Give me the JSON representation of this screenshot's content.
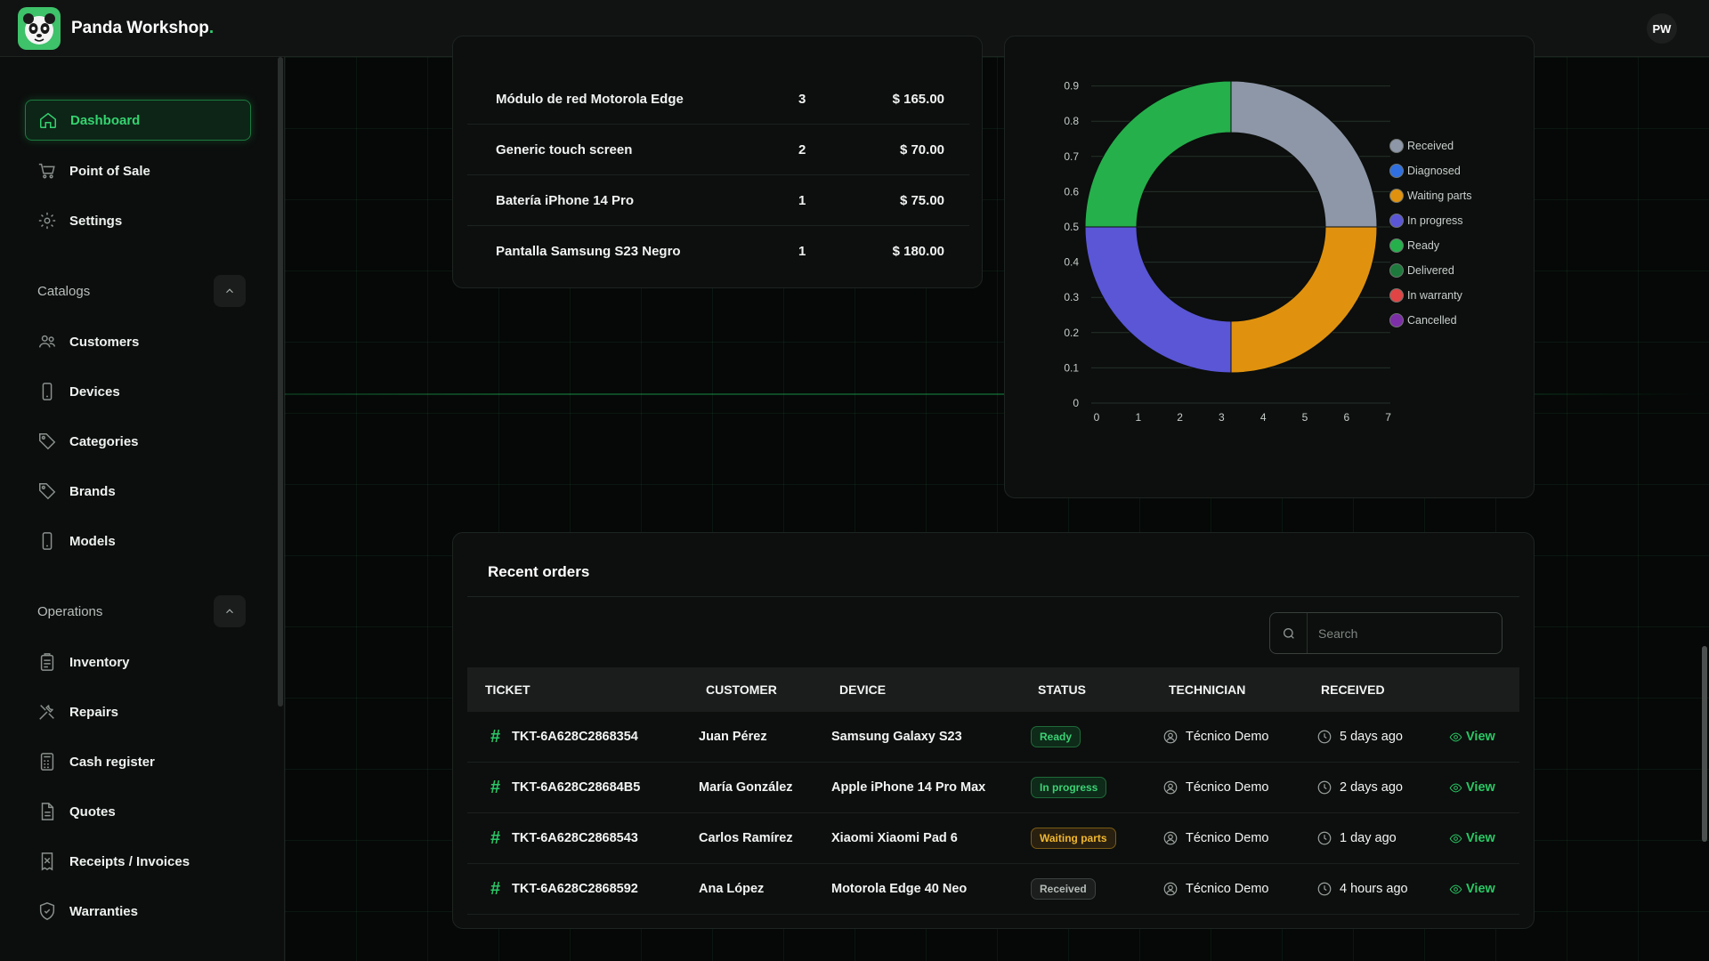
{
  "app": {
    "name": "Panda Workshop",
    "name_suffix": ".",
    "user_initials": "PW"
  },
  "sidebar": {
    "main": [
      {
        "label": "Dashboard",
        "icon": "home-icon",
        "active": true
      },
      {
        "label": "Point of Sale",
        "icon": "cart-icon"
      },
      {
        "label": "Settings",
        "icon": "gear-icon"
      }
    ],
    "catalogs_label": "Catalogs",
    "catalogs": [
      {
        "label": "Customers",
        "icon": "users-icon"
      },
      {
        "label": "Devices",
        "icon": "phone-icon"
      },
      {
        "label": "Categories",
        "icon": "tag-icon"
      },
      {
        "label": "Brands",
        "icon": "tag-icon"
      },
      {
        "label": "Models",
        "icon": "phone-icon"
      }
    ],
    "operations_label": "Operations",
    "operations": [
      {
        "label": "Inventory",
        "icon": "clipboard-icon"
      },
      {
        "label": "Repairs",
        "icon": "tools-icon"
      },
      {
        "label": "Cash register",
        "icon": "calculator-icon"
      },
      {
        "label": "Quotes",
        "icon": "document-icon"
      },
      {
        "label": "Receipts / Invoices",
        "icon": "receipt-icon"
      },
      {
        "label": "Warranties",
        "icon": "shield-icon"
      }
    ]
  },
  "products": [
    {
      "name": "Módulo de red Motorola Edge",
      "qty": "3",
      "total": "$ 165.00"
    },
    {
      "name": "Generic touch screen",
      "qty": "2",
      "total": "$ 70.00"
    },
    {
      "name": "Batería iPhone 14 Pro",
      "qty": "1",
      "total": "$ 75.00"
    },
    {
      "name": "Pantalla Samsung S23 Negro",
      "qty": "1",
      "total": "$ 180.00"
    }
  ],
  "chart_data": {
    "type": "pie",
    "subtype": "doughnut",
    "categories": [
      "Received",
      "Diagnosed",
      "Waiting parts",
      "In progress",
      "Ready",
      "Delivered",
      "In warranty",
      "Cancelled"
    ],
    "values": [
      1,
      0,
      1,
      1,
      1,
      0,
      0,
      0
    ],
    "colors": [
      "#8e97a8",
      "#2f6fe0",
      "#e0920f",
      "#5a56d6",
      "#25b04c",
      "#1d7a3c",
      "#e04444",
      "#7d2fa8"
    ],
    "legend_position": "right",
    "y_ticks": [
      "0",
      "0.1",
      "0.2",
      "0.3",
      "0.4",
      "0.5",
      "0.6",
      "0.7",
      "0.8",
      "0.9"
    ],
    "x_ticks": [
      "0",
      "1",
      "2",
      "3",
      "4",
      "5",
      "6",
      "7"
    ],
    "grid": true
  },
  "orders": {
    "title": "Recent orders",
    "search_placeholder": "Search",
    "columns": [
      "TICKET",
      "CUSTOMER",
      "DEVICE",
      "STATUS",
      "TECHNICIAN",
      "RECEIVED"
    ],
    "rows": [
      {
        "ticket": "TKT-6A628C2868354",
        "customer": "Juan Pérez",
        "device": "Samsung Galaxy S23",
        "status": "Ready",
        "status_kind": "ready",
        "technician": "Técnico Demo",
        "received": "5 days ago",
        "action": "View"
      },
      {
        "ticket": "TKT-6A628C28684B5",
        "customer": "María González",
        "device": "Apple iPhone 14 Pro Max",
        "status": "In progress",
        "status_kind": "progress",
        "technician": "Técnico Demo",
        "received": "2 days ago",
        "action": "View"
      },
      {
        "ticket": "TKT-6A628C2868543",
        "customer": "Carlos Ramírez",
        "device": "Xiaomi Xiaomi Pad 6",
        "status": "Waiting parts",
        "status_kind": "waiting",
        "technician": "Técnico Demo",
        "received": "1 day ago",
        "action": "View"
      },
      {
        "ticket": "TKT-6A628C2868592",
        "customer": "Ana López",
        "device": "Motorola Edge 40 Neo",
        "status": "Received",
        "status_kind": "received",
        "technician": "Técnico Demo",
        "received": "4 hours ago",
        "action": "View"
      }
    ]
  }
}
